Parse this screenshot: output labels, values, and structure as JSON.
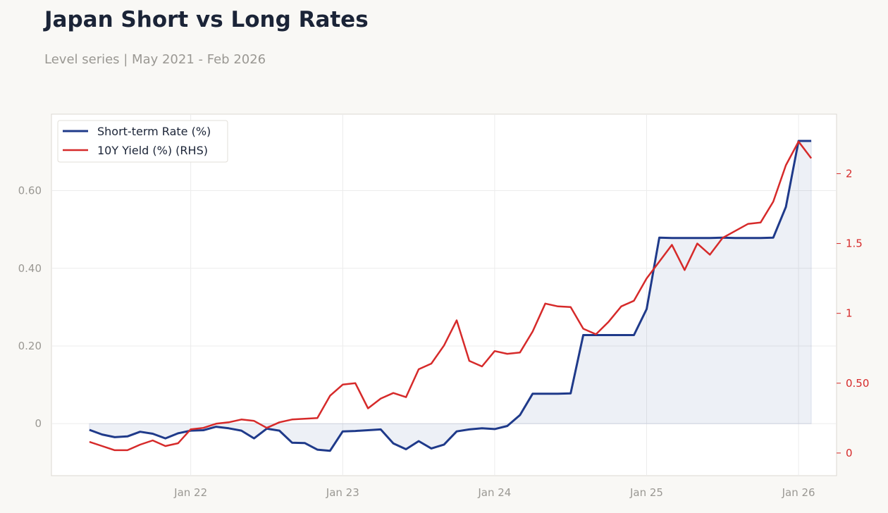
{
  "header": {
    "title": "Japan Short vs Long Rates",
    "subtitle": "Level series | May 2021 - Feb 2026"
  },
  "colors": {
    "short_rate": "#1f3a8a",
    "yield_10y": "#d62a2a",
    "fill": "#1f3a8a",
    "grid": "#ececec",
    "plot_bg": "#ffffff",
    "frame": "#dcd9d2"
  },
  "chart_data": {
    "type": "line",
    "x": [
      "2021-05",
      "2021-06",
      "2021-07",
      "2021-08",
      "2021-09",
      "2021-10",
      "2021-11",
      "2021-12",
      "2022-01",
      "2022-02",
      "2022-03",
      "2022-04",
      "2022-05",
      "2022-06",
      "2022-07",
      "2022-08",
      "2022-09",
      "2022-10",
      "2022-11",
      "2022-12",
      "2023-01",
      "2023-02",
      "2023-03",
      "2023-04",
      "2023-05",
      "2023-06",
      "2023-07",
      "2023-08",
      "2023-09",
      "2023-10",
      "2023-11",
      "2023-12",
      "2024-01",
      "2024-02",
      "2024-03",
      "2024-04",
      "2024-05",
      "2024-06",
      "2024-07",
      "2024-08",
      "2024-09",
      "2024-10",
      "2024-11",
      "2024-12",
      "2025-01",
      "2025-02",
      "2025-03",
      "2025-04",
      "2025-05",
      "2025-06",
      "2025-07",
      "2025-08",
      "2025-09",
      "2025-10",
      "2025-11",
      "2025-12",
      "2026-01",
      "2026-02"
    ],
    "series": [
      {
        "name": "Short-term Rate (%)",
        "axis": "left",
        "fill_to_zero": true,
        "values": [
          -0.016,
          -0.028,
          -0.035,
          -0.033,
          -0.021,
          -0.026,
          -0.038,
          -0.025,
          -0.018,
          -0.017,
          -0.008,
          -0.012,
          -0.018,
          -0.038,
          -0.013,
          -0.018,
          -0.049,
          -0.05,
          -0.067,
          -0.07,
          -0.02,
          -0.019,
          -0.017,
          -0.015,
          -0.051,
          -0.066,
          -0.045,
          -0.064,
          -0.054,
          -0.02,
          -0.015,
          -0.012,
          -0.014,
          -0.006,
          0.022,
          0.077,
          0.077,
          0.077,
          0.078,
          0.228,
          0.228,
          0.228,
          0.228,
          0.228,
          0.295,
          0.479,
          0.478,
          0.478,
          0.478,
          0.478,
          0.479,
          0.478,
          0.478,
          0.478,
          0.479,
          0.558,
          0.728,
          0.728
        ]
      },
      {
        "name": "10Y Yield (%) (RHS)",
        "axis": "right",
        "values": [
          0.08,
          0.05,
          0.02,
          0.02,
          0.06,
          0.09,
          0.05,
          0.07,
          0.17,
          0.18,
          0.21,
          0.22,
          0.24,
          0.23,
          0.18,
          0.22,
          0.24,
          0.245,
          0.25,
          0.41,
          0.49,
          0.5,
          0.32,
          0.39,
          0.43,
          0.4,
          0.6,
          0.64,
          0.77,
          0.95,
          0.66,
          0.62,
          0.73,
          0.71,
          0.72,
          0.87,
          1.07,
          1.05,
          1.045,
          0.89,
          0.85,
          0.94,
          1.05,
          1.09,
          1.25,
          1.37,
          1.49,
          1.31,
          1.5,
          1.42,
          1.54,
          1.59,
          1.64,
          1.65,
          1.8,
          2.06,
          2.23,
          2.11
        ]
      }
    ],
    "x_ticks": [
      {
        "date": "2022-01",
        "label": "Jan 22"
      },
      {
        "date": "2023-01",
        "label": "Jan 23"
      },
      {
        "date": "2024-01",
        "label": "Jan 24"
      },
      {
        "date": "2025-01",
        "label": "Jan 25"
      },
      {
        "date": "2026-01",
        "label": "Jan 26"
      }
    ],
    "y_left_ticks": [
      {
        "value": 0,
        "label": "0"
      },
      {
        "value": 0.2,
        "label": "0.20"
      },
      {
        "value": 0.4,
        "label": "0.40"
      },
      {
        "value": 0.6,
        "label": "0.60"
      }
    ],
    "y_right_ticks": [
      {
        "value": 0,
        "label": "0"
      },
      {
        "value": 0.5,
        "label": "0.50"
      },
      {
        "value": 1,
        "label": "1"
      },
      {
        "value": 1.5,
        "label": "1.5"
      },
      {
        "value": 2,
        "label": "2"
      }
    ],
    "ylim_left": [
      -0.134,
      0.797
    ],
    "ylim_right": [
      -0.162,
      2.426
    ],
    "xlim": [
      "2021-02",
      "2026-04"
    ],
    "grid": true,
    "legend_position": "top-left"
  }
}
